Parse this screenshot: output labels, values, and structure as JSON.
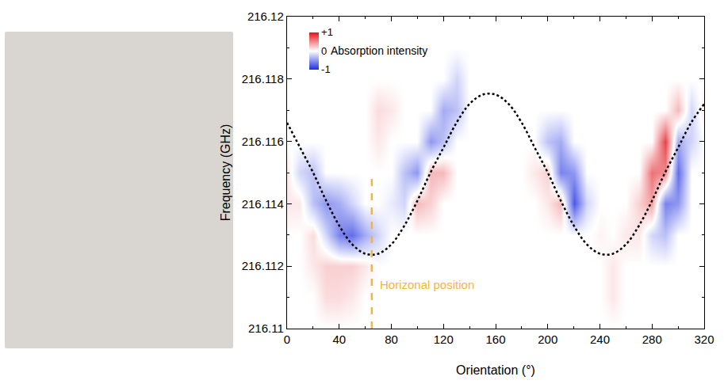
{
  "chart_data": {
    "type": "heatmap",
    "xlabel": "Orientation (°)",
    "ylabel": "Frequency (GHz)",
    "xlim": [
      0,
      320
    ],
    "xticks": [
      0,
      40,
      80,
      120,
      160,
      200,
      240,
      280,
      320
    ],
    "ylim": [
      216.11,
      216.12
    ],
    "yticks": [
      216.11,
      216.112,
      216.114,
      216.116,
      216.118,
      216.12
    ],
    "grid": false,
    "heatmap": {
      "x": [
        0,
        10,
        20,
        30,
        40,
        50,
        60,
        70,
        80,
        90,
        100,
        110,
        120,
        130,
        140,
        150,
        160,
        170,
        180,
        190,
        200,
        210,
        220,
        230,
        240,
        250,
        260,
        270,
        280,
        290,
        300,
        310,
        320
      ],
      "y": [
        216.11,
        216.111,
        216.112,
        216.113,
        216.114,
        216.115,
        216.116,
        216.117,
        216.118,
        216.119,
        216.12
      ],
      "z": [
        [
          0,
          0,
          0,
          0,
          0,
          0,
          0,
          0,
          0,
          0,
          0,
          0,
          0,
          0,
          0,
          0,
          0,
          0,
          0,
          0,
          0,
          0,
          0,
          0,
          0,
          0,
          0,
          0,
          0,
          0,
          0,
          0,
          0
        ],
        [
          0,
          0,
          0,
          0.15,
          0.15,
          0.1,
          0,
          0,
          0,
          0,
          0,
          0,
          0,
          0,
          0,
          0,
          0,
          0,
          0,
          0,
          0,
          0,
          0,
          0,
          0,
          0.1,
          0,
          0,
          0,
          0,
          0,
          0,
          0
        ],
        [
          0,
          0,
          0.1,
          0.2,
          0.2,
          0.2,
          0.1,
          0,
          0,
          0,
          0,
          0,
          0,
          0,
          0,
          0,
          0,
          0,
          0,
          0,
          0,
          0,
          0,
          0,
          0,
          0.1,
          0,
          0,
          0,
          0,
          0,
          0,
          0
        ],
        [
          0,
          0,
          0.15,
          -0.2,
          -0.6,
          -0.7,
          -0.4,
          -0.2,
          0,
          0,
          0,
          0,
          0,
          0,
          0,
          0,
          0,
          0,
          0,
          0,
          0,
          0,
          0,
          0,
          0.05,
          0,
          0.1,
          0.1,
          -0.2,
          -0.3,
          0,
          0,
          0
        ],
        [
          0.1,
          0.1,
          -0.3,
          -0.5,
          -0.4,
          -0.2,
          0,
          0,
          -0.1,
          -0.2,
          0.3,
          0.2,
          0,
          0,
          0,
          0,
          0,
          0,
          0,
          0,
          0.1,
          0.3,
          -0.8,
          -0.2,
          0,
          0,
          0,
          0.2,
          0.4,
          -0.6,
          -0.5,
          0,
          0
        ],
        [
          0.1,
          -0.2,
          -0.3,
          0,
          0,
          0,
          0,
          0,
          0,
          -0.3,
          -0.5,
          0.3,
          0.3,
          0,
          0,
          0,
          0,
          0,
          0,
          0.1,
          0.2,
          -0.6,
          -0.5,
          0,
          0,
          0,
          0,
          0,
          0.6,
          0.5,
          -0.7,
          0,
          0
        ],
        [
          0,
          0,
          0,
          0,
          0,
          0,
          0,
          0.1,
          0,
          0,
          0,
          -0.5,
          -0.3,
          0,
          0,
          0,
          0,
          0,
          0,
          0,
          -0.3,
          -0.4,
          0,
          0,
          0,
          0,
          0,
          0,
          0,
          0.8,
          -0.4,
          -0.2,
          0
        ],
        [
          0,
          0,
          0,
          0,
          0,
          0,
          0,
          0.15,
          0.1,
          0,
          0,
          0,
          -0.4,
          -0.3,
          0,
          0,
          0,
          0,
          0,
          0,
          0,
          0,
          0,
          0,
          0,
          0,
          0,
          0,
          0,
          0,
          0.3,
          -0.2,
          0.1
        ],
        [
          0,
          0,
          0,
          0,
          0,
          0,
          0,
          0,
          0,
          0,
          0,
          0,
          0,
          -0.2,
          0,
          0,
          0,
          0,
          0,
          0,
          0,
          0,
          0,
          0,
          0,
          0,
          0,
          0,
          0,
          0,
          0,
          0,
          0
        ],
        [
          0,
          0,
          0,
          0,
          0,
          0,
          0,
          0,
          0,
          0,
          0,
          0,
          0,
          0,
          0,
          0,
          0,
          0,
          0,
          0,
          0,
          0,
          0,
          0,
          0,
          0,
          0,
          0,
          0,
          0,
          0,
          0,
          0
        ],
        [
          0,
          0,
          0,
          0,
          0,
          0,
          0,
          0,
          0,
          0,
          0,
          0,
          0,
          0,
          0,
          0,
          0,
          0,
          0,
          0,
          0,
          0,
          0,
          0,
          0,
          0,
          0,
          0,
          0,
          0,
          0,
          0,
          0
        ]
      ]
    },
    "colorbar": {
      "title": "Absorption intensity",
      "range": [
        -1,
        1
      ],
      "ticks": [
        -1,
        0,
        {
          "value": 1,
          "label": "+1"
        }
      ],
      "colors": [
        "#1f2fe0",
        "#ffffff",
        "#e0141c"
      ]
    },
    "series": [
      {
        "type": "line",
        "color": "#000000",
        "line_style": "dotted",
        "x": [
          0,
          10,
          20,
          30,
          40,
          50,
          60,
          70,
          80,
          90,
          100,
          110,
          120,
          130,
          140,
          150,
          160,
          170,
          180,
          190,
          200,
          210,
          220,
          230,
          240,
          250,
          260,
          270,
          280,
          290,
          300,
          310,
          320
        ],
        "values": [
          216.1166,
          216.1158,
          216.115,
          216.1141,
          216.1133,
          216.1127,
          216.1124,
          216.1124,
          216.1127,
          216.1133,
          216.1141,
          216.115,
          216.1158,
          216.1166,
          216.1172,
          216.1175,
          216.1175,
          216.1172,
          216.1166,
          216.1158,
          216.115,
          216.1141,
          216.1133,
          216.1127,
          216.1124,
          216.1124,
          216.1127,
          216.1133,
          216.1141,
          216.115,
          216.1158,
          216.1166,
          216.1172
        ]
      }
    ],
    "vline": {
      "x": 65,
      "ylim": [
        216.11,
        216.1148
      ],
      "color": "#f4b63a",
      "line_style": "dashed"
    },
    "annotations": [
      {
        "text": "Horizonal position",
        "x": 70,
        "y": 216.1114,
        "color": "#f4b63a"
      }
    ]
  }
}
